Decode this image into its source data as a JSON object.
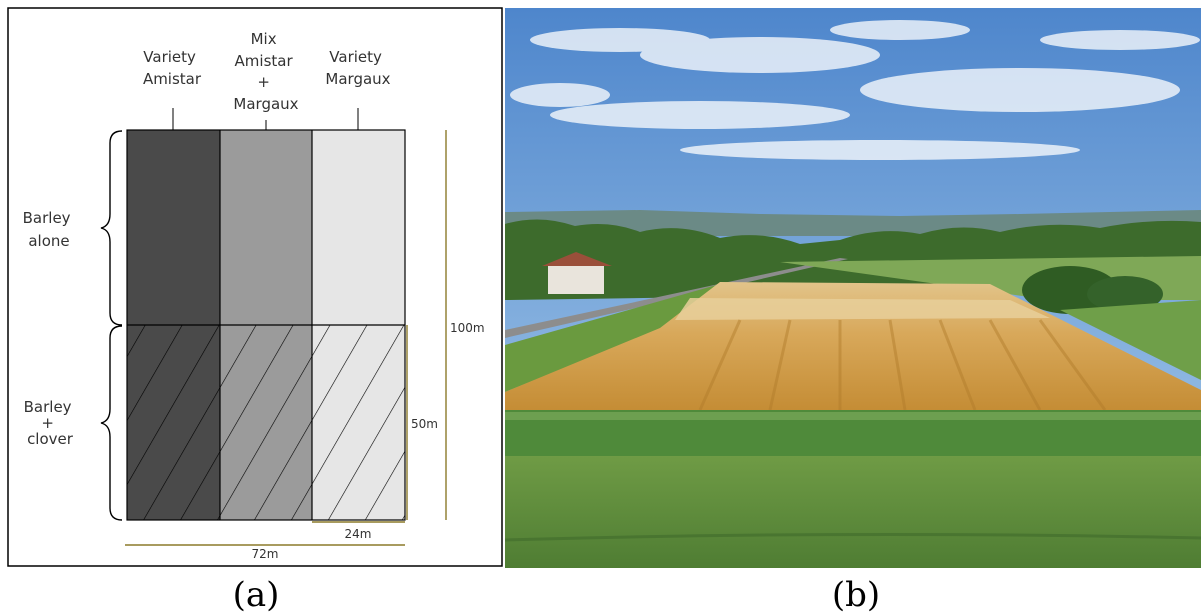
{
  "panel_a": {
    "columns": [
      {
        "lines": [
          "Variety",
          "Amistar"
        ],
        "color": "#4a4a4a"
      },
      {
        "lines": [
          "Mix",
          "Amistar",
          "+",
          "Margaux"
        ],
        "color": "#9b9b9b"
      },
      {
        "lines": [
          "Variety",
          "Margaux"
        ],
        "color": "#e6e6e6"
      }
    ],
    "rows": [
      {
        "lines": [
          "Barley",
          "alone"
        ],
        "hatched": false
      },
      {
        "lines": [
          "Barley",
          "+",
          "clover"
        ],
        "hatched": true
      }
    ],
    "dimensions": {
      "height_total": "100m",
      "height_half": "50m",
      "width_column": "24m",
      "width_total": "72m"
    },
    "dimension_color": "#8b7a2a",
    "caption": "(a)"
  },
  "panel_b": {
    "caption": "(b)",
    "sky_colors": [
      "#5b8ed0",
      "#9cc0e4"
    ],
    "field_colors": [
      "#d9a95a",
      "#c8922e"
    ],
    "grass_color": "#5f8f3c"
  }
}
